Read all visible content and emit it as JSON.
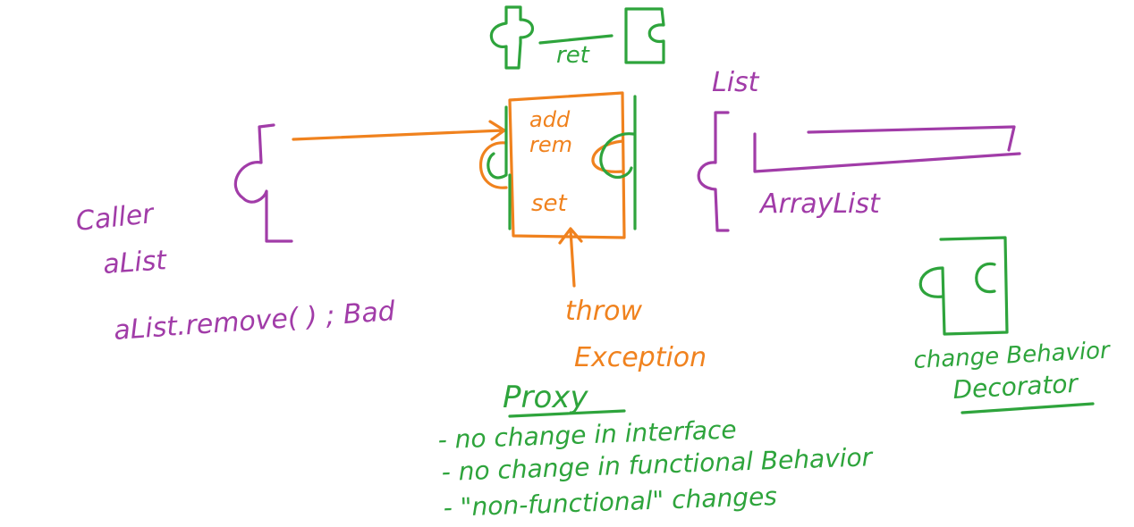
{
  "colors": {
    "purple": "#a13ca8",
    "orange": "#f0821e",
    "green": "#2ea43c",
    "background": "#ffffff"
  },
  "top_interface": {
    "label": "ret"
  },
  "left_client": {
    "label_line1": "Caller",
    "label_line2": "aList",
    "call_text": "aList.remove( ) ; Bad"
  },
  "proxy_box": {
    "method_1": "add",
    "method_2": "rem",
    "method_3": "set",
    "throw_line1": "throw",
    "throw_line2": "Exception"
  },
  "right_target": {
    "label_top": "List",
    "label_bottom": "ArrayList"
  },
  "decorator": {
    "caption_1": "change Behavior",
    "caption_2": "Decorator"
  },
  "proxy_notes": {
    "heading": "Proxy",
    "bullets": [
      "- no change in interface",
      "- no change in functional Behavior",
      "- \"non-functional\" changes"
    ]
  }
}
